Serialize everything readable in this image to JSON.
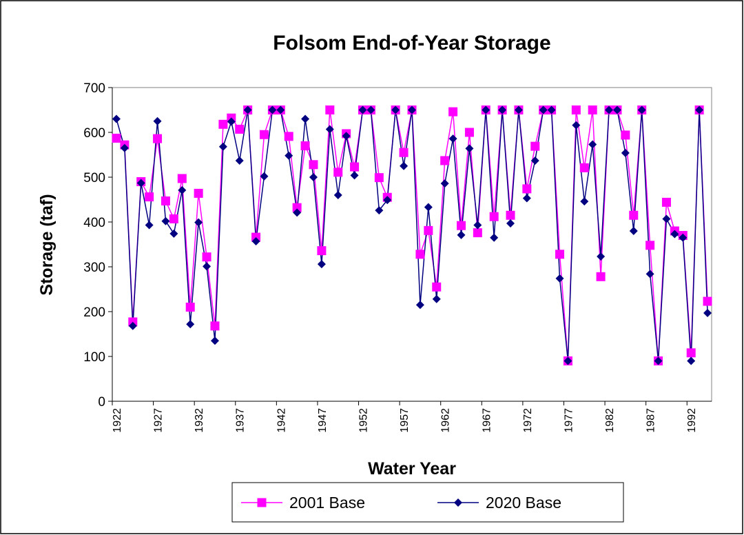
{
  "chart_data": {
    "type": "line",
    "title": "Folsom End-of-Year Storage",
    "x_label": "Water Year",
    "y_label": "Storage (taf)",
    "categories": [
      "1922",
      null,
      null,
      null,
      null,
      "1927",
      null,
      null,
      null,
      null,
      "1932",
      null,
      null,
      null,
      null,
      "1937",
      null,
      null,
      null,
      null,
      "1942",
      null,
      null,
      null,
      null,
      "1947",
      null,
      null,
      null,
      null,
      "1952",
      null,
      null,
      null,
      null,
      "1957",
      null,
      null,
      null,
      null,
      "1962",
      null,
      null,
      null,
      null,
      "1967",
      null,
      null,
      null,
      null,
      "1972",
      null,
      null,
      null,
      null,
      "1977",
      null,
      null,
      null,
      null,
      "1982",
      null,
      null,
      null,
      null,
      "1987",
      null,
      null,
      null,
      null,
      "1992",
      null,
      null
    ],
    "series": [
      {
        "name": "2001 Base",
        "color": "#ff00ff",
        "marker": "square",
        "values": [
          587,
          572,
          177,
          490,
          456,
          586,
          447,
          407,
          497,
          210,
          464,
          322,
          168,
          618,
          632,
          607,
          650,
          366,
          595,
          650,
          650,
          591,
          432,
          570,
          528,
          336,
          650,
          511,
          597,
          523,
          650,
          650,
          499,
          455,
          650,
          555,
          650,
          328,
          381,
          255,
          537,
          646,
          392,
          600,
          376,
          650,
          412,
          650,
          415,
          650,
          474,
          569,
          650,
          650,
          328,
          90,
          650,
          521,
          650,
          278,
          650,
          650,
          594,
          415,
          650,
          348,
          90,
          444,
          380,
          370,
          108,
          650,
          223
        ]
      },
      {
        "name": "2020 Base",
        "color": "#000080",
        "marker": "diamond",
        "values": [
          630,
          565,
          168,
          487,
          393,
          625,
          402,
          374,
          471,
          172,
          399,
          301,
          135,
          568,
          624,
          537,
          650,
          357,
          502,
          650,
          650,
          548,
          421,
          630,
          500,
          306,
          607,
          460,
          592,
          504,
          650,
          650,
          426,
          449,
          650,
          525,
          650,
          215,
          433,
          228,
          486,
          586,
          371,
          564,
          393,
          650,
          365,
          650,
          397,
          650,
          453,
          537,
          650,
          650,
          274,
          90,
          616,
          446,
          573,
          323,
          650,
          650,
          554,
          380,
          650,
          284,
          90,
          407,
          373,
          365,
          90,
          650,
          197
        ]
      }
    ],
    "ylim": [
      0,
      700
    ],
    "yticks": [
      0,
      100,
      200,
      300,
      400,
      500,
      600,
      700
    ]
  }
}
